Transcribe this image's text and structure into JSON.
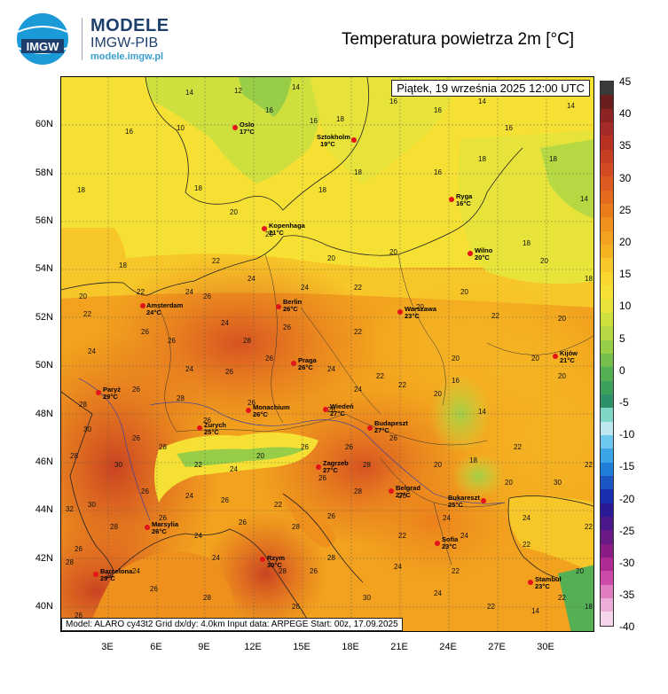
{
  "brand": {
    "title": "MODELE",
    "subtitle": "IMGW-PIB",
    "url": "modele.imgw.pl",
    "logo_text": "IMGW"
  },
  "title": "Temperatura powietrza 2m [°C]",
  "map": {
    "datetime": "Piątek, 19 września 2025 12:00 UTC",
    "footer": "Model: ALARO cy43t2   Grid dx/dy: 4.0km   Input data: ARPEGE   Start: 00z, 17.09.2025",
    "lat_labels": [
      "60N",
      "58N",
      "56N",
      "54N",
      "52N",
      "50N",
      "48N",
      "46N",
      "44N",
      "42N",
      "40N"
    ],
    "lon_labels": [
      "3E",
      "6E",
      "9E",
      "12E",
      "15E",
      "18E",
      "21E",
      "24E",
      "27E",
      "30E"
    ],
    "cities": [
      {
        "name": "Oslo",
        "temp": "17°C"
      },
      {
        "name": "Sztokholm",
        "temp": "19°C"
      },
      {
        "name": "Ryga",
        "temp": "16°C"
      },
      {
        "name": "Kopenhaga",
        "temp": "21°C"
      },
      {
        "name": "Wilno",
        "temp": "20°C"
      },
      {
        "name": "Amsterdam",
        "temp": "24°C"
      },
      {
        "name": "Berlin",
        "temp": "26°C"
      },
      {
        "name": "Warszawa",
        "temp": "23°C"
      },
      {
        "name": "Kijów",
        "temp": "21°C"
      },
      {
        "name": "Praga",
        "temp": "26°C"
      },
      {
        "name": "Paryż",
        "temp": "29°C"
      },
      {
        "name": "Monachium",
        "temp": "26°C"
      },
      {
        "name": "Wiedeń",
        "temp": "27°C"
      },
      {
        "name": "Zurych",
        "temp": "25°C"
      },
      {
        "name": "Budapeszt",
        "temp": "27°C"
      },
      {
        "name": "Zagrzeb",
        "temp": "27°C"
      },
      {
        "name": "Belgrad",
        "temp": "27°C"
      },
      {
        "name": "Bukareszt",
        "temp": "25°C"
      },
      {
        "name": "Marsylia",
        "temp": "26°C"
      },
      {
        "name": "Rzym",
        "temp": "30°C"
      },
      {
        "name": "Sofia",
        "temp": "23°C"
      },
      {
        "name": "Barcelona",
        "temp": "29°C"
      },
      {
        "name": "Stambuł",
        "temp": "23°C"
      }
    ]
  },
  "colorbar": {
    "labels": [
      "45",
      "40",
      "35",
      "30",
      "25",
      "20",
      "15",
      "10",
      "5",
      "0",
      "-5",
      "-10",
      "-15",
      "-20",
      "-25",
      "-30",
      "-35",
      "-40"
    ],
    "colors": [
      "#3a3a3a",
      "#6b1e1e",
      "#8e2323",
      "#a52a2a",
      "#b83224",
      "#c83e22",
      "#d44a22",
      "#de5a20",
      "#e46a1e",
      "#ea7c1c",
      "#ef8f1c",
      "#f2a21e",
      "#f5b322",
      "#f7c628",
      "#f9d72e",
      "#f6e034",
      "#e7e33a",
      "#cfe03e",
      "#b5d843",
      "#98cd48",
      "#76bf4d",
      "#55b055",
      "#3da15e",
      "#2f9169",
      "#7fd6c6",
      "#bde8f0",
      "#6ec8f0",
      "#3aa4e8",
      "#1e7ed8",
      "#1c55c4",
      "#1a2fb0",
      "#2a1a96",
      "#4a1888",
      "#6a1a86",
      "#8a1c86",
      "#b02a94",
      "#cc4aa8",
      "#e07cc2",
      "#ecaed8",
      "#f6d6ec"
    ]
  }
}
